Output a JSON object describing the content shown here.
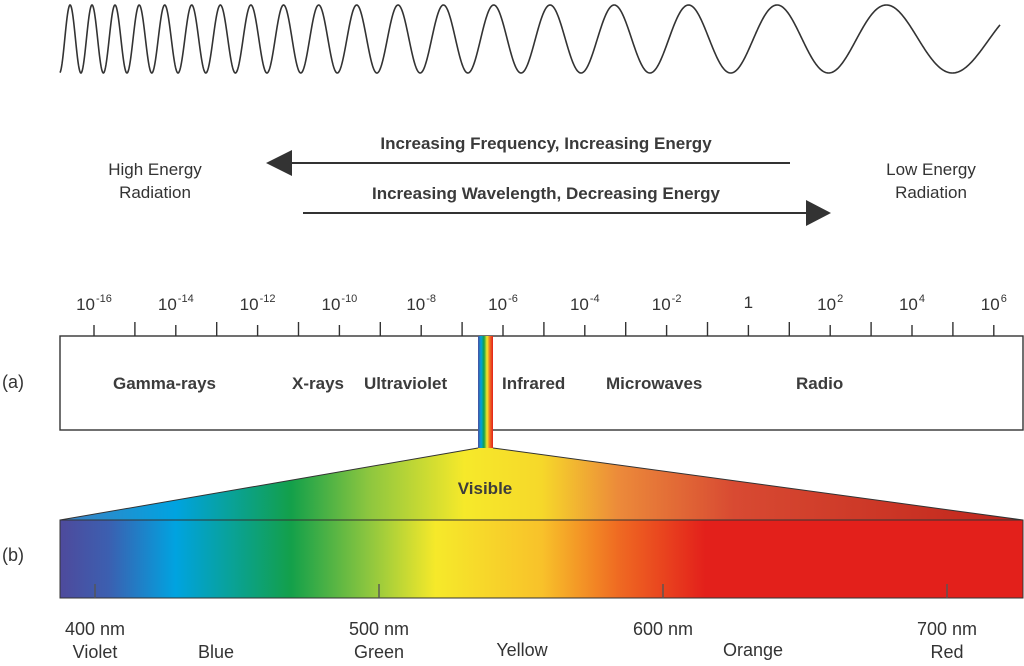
{
  "energy": {
    "high_line1": "High Energy",
    "high_line2": "Radiation",
    "low_line1": "Low Energy",
    "low_line2": "Radiation"
  },
  "arrows": {
    "left_label": "Increasing Frequency, Increasing Energy",
    "right_label": "Increasing Wavelength, Decreasing Energy"
  },
  "scale": {
    "ticks": [
      {
        "base": "10",
        "exp": "-16"
      },
      {
        "base": "10",
        "exp": "-14"
      },
      {
        "base": "10",
        "exp": "-12"
      },
      {
        "base": "10",
        "exp": "-10"
      },
      {
        "base": "10",
        "exp": "-8"
      },
      {
        "base": "10",
        "exp": "-6"
      },
      {
        "base": "10",
        "exp": "-4"
      },
      {
        "base": "10",
        "exp": "-2"
      },
      {
        "base": "1",
        "exp": ""
      },
      {
        "base": "10",
        "exp": "2"
      },
      {
        "base": "10",
        "exp": "4"
      },
      {
        "base": "10",
        "exp": "6"
      }
    ]
  },
  "rows": {
    "a_label": "(a)",
    "b_label": "(b)"
  },
  "bands": {
    "gamma": "Gamma-rays",
    "xrays": "X-rays",
    "ultraviolet": "Ultraviolet",
    "infrared": "Infrared",
    "microwaves": "Microwaves",
    "radio": "Radio"
  },
  "visible": {
    "label": "Visible",
    "wavelengths": [
      "400 nm",
      "500 nm",
      "600 nm",
      "700 nm"
    ],
    "colors": [
      "Violet",
      "Blue",
      "Green",
      "Yellow",
      "Orange",
      "Red"
    ]
  },
  "palette": {
    "stroke": "#333333",
    "violet": "#4e4a9c",
    "blue": "#00a3e0",
    "green": "#13a04a",
    "yellow": "#f6e92a",
    "orange": "#ef6a22",
    "red": "#e3201b"
  }
}
